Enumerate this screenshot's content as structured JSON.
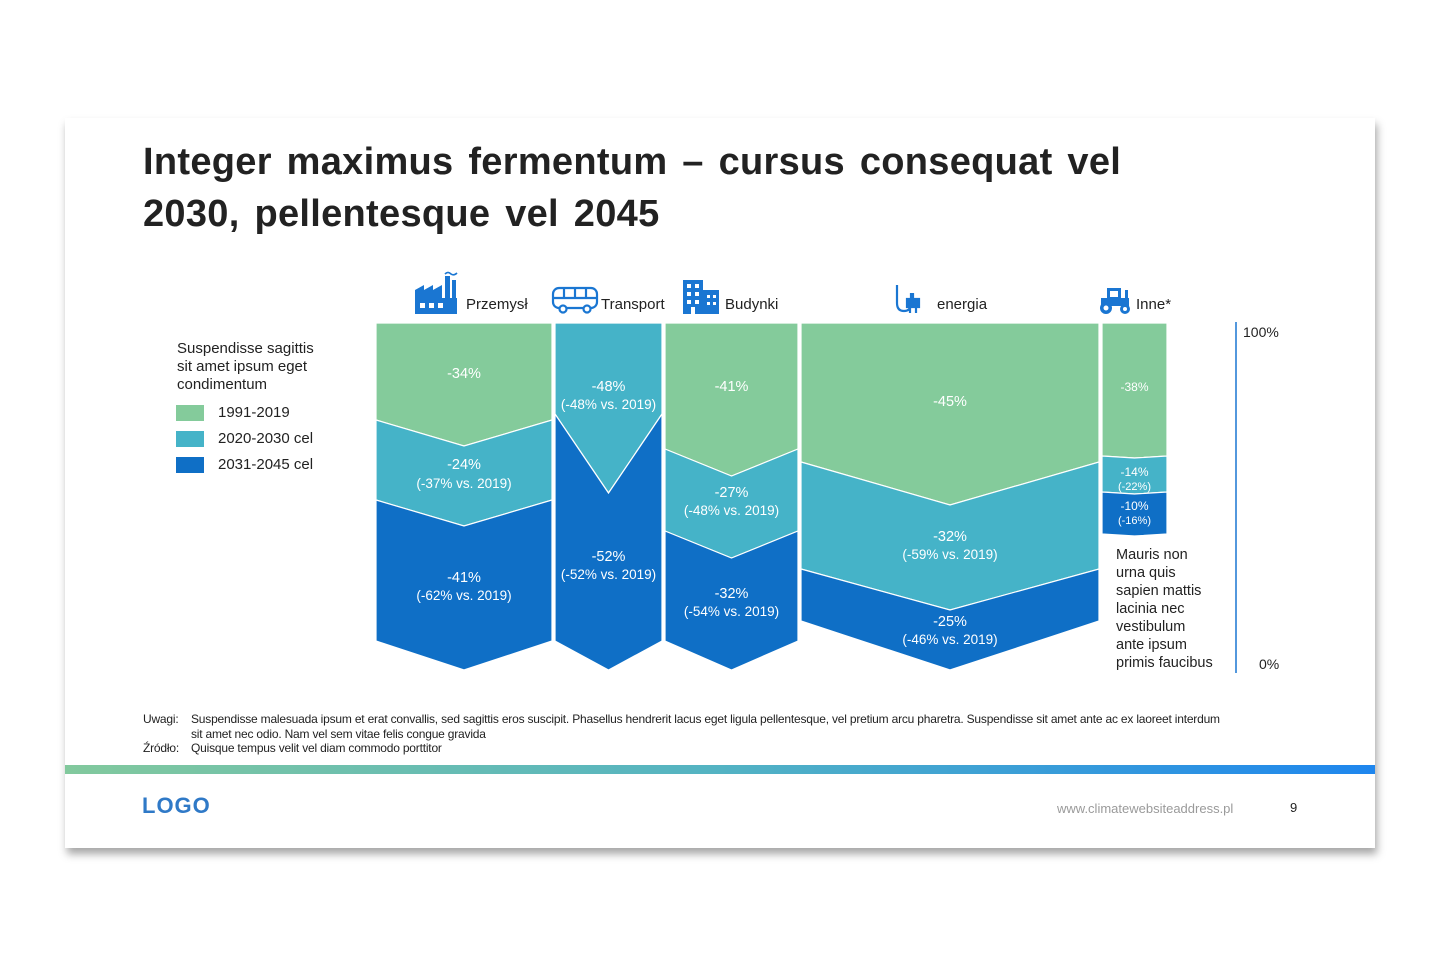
{
  "title": "Integer maximus fermentum – cursus consequat vel 2030, pellentesque vel 2045",
  "legend": {
    "title": "Suspendisse sagittis sit amet ipsum eget condimentum",
    "items": [
      "1991-2019",
      "2020-2030 cel",
      "2031-2045 cel"
    ]
  },
  "colors": {
    "period1": "#84cb9b",
    "period2": "#45b3c8",
    "period3": "#0f6fc6",
    "icon": "#1a76d2"
  },
  "chart_data": {
    "type": "area",
    "sectors": [
      {
        "name": "Przemysł",
        "icon": "factory-icon",
        "segments": [
          {
            "value": "-34%",
            "sub": ""
          },
          {
            "value": "-24%",
            "sub": "(-37% vs. 2019)"
          },
          {
            "value": "-41%",
            "sub": "(-62% vs. 2019)"
          }
        ]
      },
      {
        "name": "Transport",
        "icon": "bus-icon",
        "segments": [
          {
            "value": "-48%",
            "sub": "(-48% vs. 2019)"
          },
          {
            "value": "-52%",
            "sub": "(-52% vs. 2019)"
          }
        ]
      },
      {
        "name": "Budynki",
        "icon": "building-icon",
        "segments": [
          {
            "value": "-41%",
            "sub": ""
          },
          {
            "value": "-27%",
            "sub": "(-48% vs. 2019)"
          },
          {
            "value": "-32%",
            "sub": "(-54% vs. 2019)"
          }
        ]
      },
      {
        "name": "energia",
        "icon": "plug-icon",
        "segments": [
          {
            "value": "-45%",
            "sub": ""
          },
          {
            "value": "-32%",
            "sub": "(-59% vs. 2019)"
          },
          {
            "value": "-25%",
            "sub": "(-46% vs. 2019)"
          }
        ]
      },
      {
        "name": "Inne*",
        "icon": "tractor-icon",
        "segments": [
          {
            "value": "-38%",
            "sub": ""
          },
          {
            "value": "-14%",
            "sub": "(-22%)"
          },
          {
            "value": "-10%",
            "sub": "(-16%)"
          }
        ]
      }
    ],
    "axis": {
      "top_label": "100%",
      "bottom_label": "0%"
    },
    "annotation": "Mauris non urna quis sapien mattis lacinia nec vestibulum ante ipsum primis faucibus"
  },
  "notes": {
    "uwagi_key": "Uwagi:",
    "uwagi_text": "Suspendisse malesuada ipsum et erat convallis, sed sagittis eros suscipit. Phasellus hendrerit lacus eget ligula pellentesque, vel pretium arcu pharetra. Suspendisse sit amet ante ac ex laoreet interdum sit amet nec odio. Nam vel  sem vitae felis congue gravida",
    "zrodlo_key": "Źródło:",
    "zrodlo_text": "Quisque tempus velit vel diam commodo porttitor"
  },
  "footer": {
    "logo": "LOGO",
    "url": "www.climatewebsiteaddress.pl",
    "page": "9"
  }
}
